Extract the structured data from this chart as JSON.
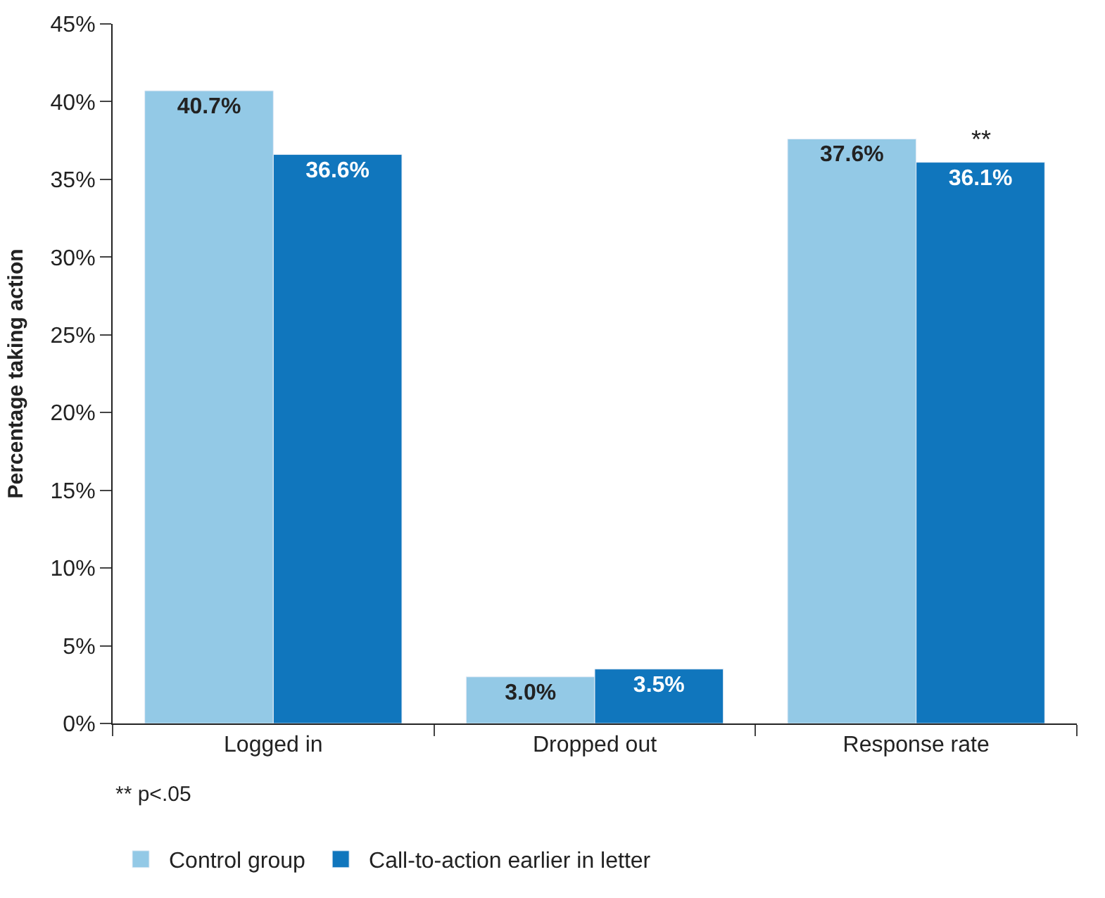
{
  "chart_data": {
    "type": "bar",
    "ylabel": "Percentage taking action",
    "categories": [
      "Logged in",
      "Dropped out",
      "Response rate"
    ],
    "series": [
      {
        "name": "Control group",
        "color": "#93c9e6",
        "values": [
          40.7,
          3.0,
          37.6
        ],
        "value_labels": [
          "40.7%",
          "3.0%",
          "37.6%"
        ]
      },
      {
        "name": "Call-to-action earlier in letter",
        "color": "#1076bd",
        "values": [
          36.6,
          3.5,
          36.1
        ],
        "value_labels": [
          "36.6%",
          "3.5%",
          "36.1%"
        ]
      }
    ],
    "ylim": [
      0,
      45
    ],
    "yticks": [
      {
        "value": 0,
        "label": "0%"
      },
      {
        "value": 5,
        "label": "5%"
      },
      {
        "value": 10,
        "label": "10%"
      },
      {
        "value": 15,
        "label": "15%"
      },
      {
        "value": 20,
        "label": "20%"
      },
      {
        "value": 25,
        "label": "25%"
      },
      {
        "value": 30,
        "label": "30%"
      },
      {
        "value": 35,
        "label": "35%"
      },
      {
        "value": 40,
        "label": "40%"
      },
      {
        "value": 45,
        "label": "45%"
      }
    ],
    "annotations": [
      {
        "text": "**",
        "x": "Response rate",
        "y": 36.1
      },
      "** p<.05"
    ],
    "legend": "bottom"
  }
}
